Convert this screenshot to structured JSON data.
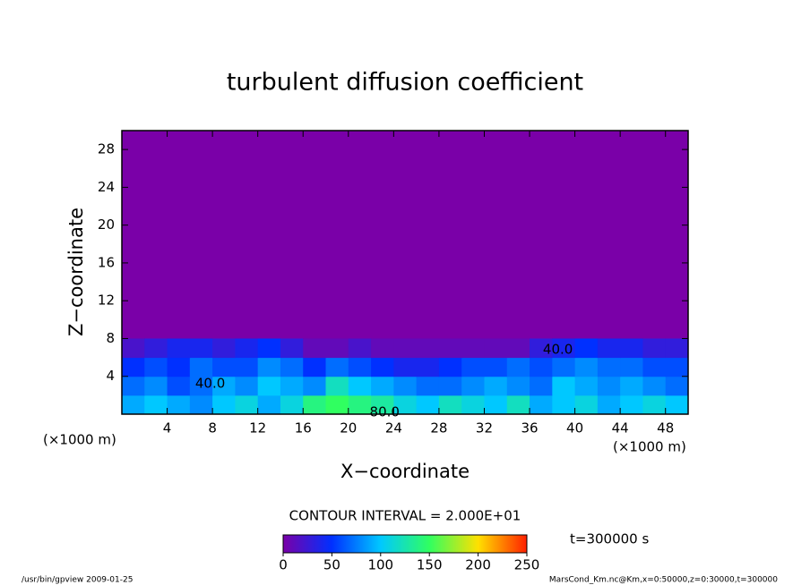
{
  "chart_data": {
    "type": "contour",
    "title": "turbulent diffusion coefficient",
    "x_label": "X−coordinate",
    "y_label": "Z−coordinate",
    "x_unit": "(×1000 m)",
    "y_unit": "(×1000 m)",
    "xlim": [
      0,
      50
    ],
    "ylim": [
      0,
      30
    ],
    "xticks": [
      4,
      8,
      12,
      16,
      20,
      24,
      28,
      32,
      36,
      40,
      44,
      48
    ],
    "yticks": [
      4,
      8,
      12,
      16,
      20,
      24,
      28
    ],
    "x": [
      1,
      3,
      5,
      7,
      9,
      11,
      13,
      15,
      17,
      19,
      21,
      23,
      25,
      27,
      29,
      31,
      33,
      35,
      37,
      39,
      41,
      43,
      45,
      47,
      49
    ],
    "y": [
      1,
      3,
      5,
      7
    ],
    "z": [
      [
        90,
        100,
        90,
        80,
        100,
        110,
        90,
        110,
        140,
        150,
        140,
        130,
        110,
        100,
        120,
        110,
        100,
        120,
        90,
        100,
        110,
        90,
        100,
        110,
        100
      ],
      [
        70,
        80,
        60,
        70,
        90,
        80,
        100,
        90,
        80,
        120,
        100,
        90,
        80,
        70,
        70,
        80,
        90,
        80,
        70,
        100,
        90,
        80,
        90,
        80,
        70
      ],
      [
        50,
        60,
        50,
        70,
        60,
        60,
        80,
        70,
        50,
        70,
        60,
        50,
        40,
        40,
        50,
        60,
        60,
        70,
        60,
        70,
        80,
        70,
        70,
        60,
        60
      ],
      [
        20,
        30,
        40,
        40,
        30,
        40,
        50,
        30,
        10,
        10,
        20,
        10,
        10,
        10,
        10,
        10,
        10,
        10,
        30,
        40,
        50,
        40,
        40,
        30,
        30
      ]
    ],
    "colormap": [
      "#7a00a8",
      "#0030ff",
      "#00c8ff",
      "#30ff60",
      "#ffe000",
      "#ff2000"
    ],
    "clim": [
      0,
      250
    ],
    "colorbar_ticks": [
      0,
      50,
      100,
      150,
      200,
      250
    ],
    "contour_labels": [
      {
        "text": "40.0",
        "x": 38.5,
        "y": 6.8
      },
      {
        "text": "40.0",
        "x": 7.8,
        "y": 3.2
      },
      {
        "text": "80.0",
        "x": 23.2,
        "y": 0.2
      }
    ],
    "contour_interval": "CONTOUR INTERVAL = 2.000E+01",
    "time": "t=300000 s",
    "footer_left": "/usr/bin/gpview  2009-01-25",
    "footer_right": "MarsCond_Km.nc@Km,x=0:50000,z=0:30000,t=300000"
  }
}
